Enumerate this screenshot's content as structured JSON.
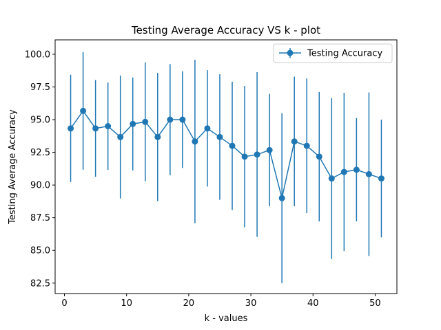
{
  "chart_data": {
    "type": "line",
    "title": "Testing Average Accuracy VS k - plot",
    "xlabel": "k - values",
    "ylabel": "Testing Average Accuracy",
    "xlim": [
      -1.5,
      53.5
    ],
    "ylim": [
      81.7,
      101.1
    ],
    "xticks": [
      0,
      10,
      20,
      30,
      40,
      50
    ],
    "yticks": [
      82.5,
      85.0,
      87.5,
      90.0,
      92.5,
      95.0,
      97.5,
      100.0
    ],
    "grid": false,
    "legend_position": "top-right",
    "series": [
      {
        "name": "Testing Accuracy",
        "color": "#1f77b4",
        "marker": "circle",
        "x": [
          1,
          3,
          5,
          7,
          9,
          11,
          13,
          15,
          17,
          19,
          21,
          23,
          25,
          27,
          29,
          31,
          33,
          35,
          37,
          39,
          41,
          43,
          45,
          47,
          49,
          51
        ],
        "y": [
          94.33,
          95.67,
          94.33,
          94.5,
          93.67,
          94.67,
          94.83,
          93.67,
          95.0,
          95.0,
          93.33,
          94.33,
          93.67,
          93.0,
          92.17,
          92.33,
          92.67,
          89.0,
          93.33,
          93.0,
          92.17,
          90.5,
          91.0,
          91.17,
          90.83,
          90.5
        ],
        "yerr": [
          4.1,
          4.5,
          3.7,
          3.35,
          4.7,
          3.55,
          4.55,
          4.9,
          4.25,
          3.7,
          6.25,
          4.45,
          4.8,
          4.9,
          5.4,
          6.3,
          4.3,
          6.5,
          4.95,
          5.15,
          4.95,
          6.15,
          6.05,
          3.95,
          6.25,
          4.5
        ]
      }
    ]
  }
}
